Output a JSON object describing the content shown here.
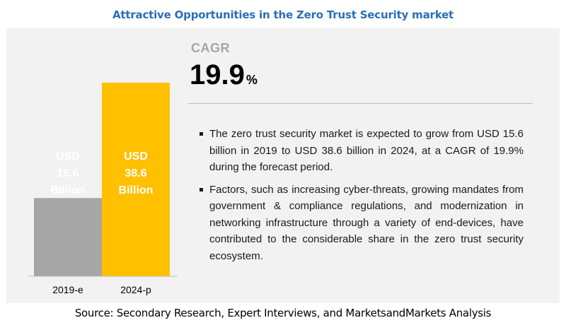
{
  "title": "Attractive Opportunities in the Zero Trust Security market",
  "cagr": {
    "label": "CAGR",
    "value": "19.9",
    "unit": "%"
  },
  "bullets": [
    "The zero trust security market is expected to grow from USD 15.6 billion in 2019 to USD 38.6 billion in 2024, at a CAGR of 19.9% during the forecast period.",
    "Factors, such as increasing cyber-threats, growing mandates from government & compliance regulations, and modernization in networking infrastructure through a variety of end-devices, have contributed to the considerable share in the zero trust security ecosystem."
  ],
  "source": "Source: Secondary Research, Expert Interviews, and MarketsandMarkets Analysis",
  "colors": {
    "bar_2019": "#a6a6a6",
    "bar_2024": "#ffc000",
    "title": "#2a6fb5",
    "panel": "#f2f2f2"
  },
  "chart_data": {
    "type": "bar",
    "categories": [
      "2019-e",
      "2024-p"
    ],
    "values": [
      15.6,
      38.6
    ],
    "bar_labels": [
      [
        "USD",
        "15.6",
        "Billion"
      ],
      [
        "USD",
        "38.6",
        "Billion"
      ]
    ],
    "ylim": [
      0,
      38.6
    ]
  }
}
